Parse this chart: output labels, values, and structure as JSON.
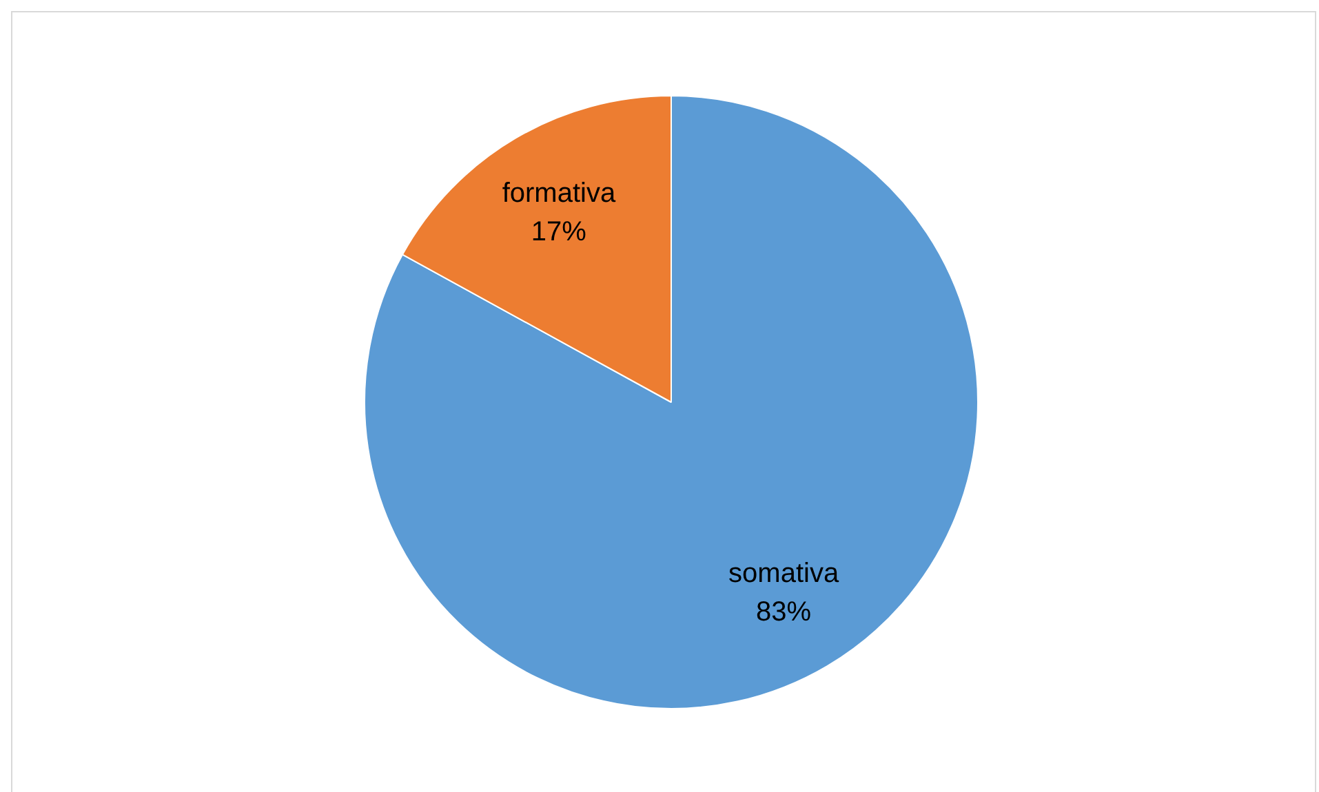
{
  "chart_data": {
    "type": "pie",
    "categories": [
      "somativa",
      "formativa"
    ],
    "values": [
      83,
      17
    ],
    "colors": [
      "#5b9bd5",
      "#ed7d31"
    ],
    "value_labels": [
      "83%",
      "17%"
    ],
    "legend": false
  }
}
